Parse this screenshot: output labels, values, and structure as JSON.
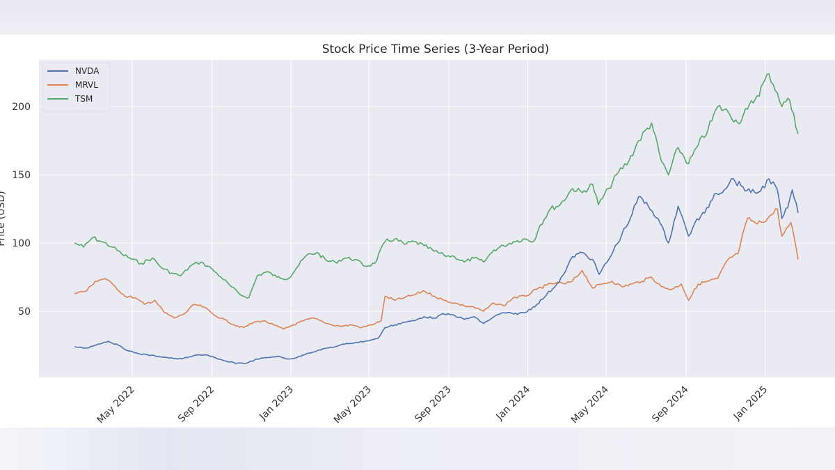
{
  "chart_data": {
    "type": "line",
    "title": "Stock Price Time Series (3-Year Period)",
    "xlabel": "",
    "ylabel": "Price (USD)",
    "x_range": [
      "2022-02-01",
      "2025-02-21"
    ],
    "ylim": [
      0,
      232
    ],
    "y_ticks": [
      50,
      100,
      150,
      200
    ],
    "x_ticks": [
      {
        "date": "2022-05-01",
        "label": "May 2022"
      },
      {
        "date": "2022-09-01",
        "label": "Sep 2022"
      },
      {
        "date": "2023-01-01",
        "label": "Jan 2023"
      },
      {
        "date": "2023-05-01",
        "label": "May 2023"
      },
      {
        "date": "2023-09-01",
        "label": "Sep 2023"
      },
      {
        "date": "2024-01-01",
        "label": "Jan 2024"
      },
      {
        "date": "2024-05-01",
        "label": "May 2024"
      },
      {
        "date": "2024-09-01",
        "label": "Sep 2024"
      },
      {
        "date": "2025-01-01",
        "label": "Jan 2025"
      }
    ],
    "grid": true,
    "legend_position": "top-left",
    "series": [
      {
        "name": "NVDA",
        "color": "#4c72b0",
        "points": [
          [
            "2022-02-01",
            24
          ],
          [
            "2022-02-20",
            23
          ],
          [
            "2022-03-10",
            26
          ],
          [
            "2022-03-25",
            28
          ],
          [
            "2022-04-10",
            25
          ],
          [
            "2022-04-25",
            21
          ],
          [
            "2022-05-10",
            19
          ],
          [
            "2022-05-25",
            18
          ],
          [
            "2022-06-10",
            17
          ],
          [
            "2022-06-25",
            16
          ],
          [
            "2022-07-10",
            15
          ],
          [
            "2022-07-25",
            16
          ],
          [
            "2022-08-10",
            18
          ],
          [
            "2022-08-25",
            18
          ],
          [
            "2022-09-10",
            15
          ],
          [
            "2022-09-25",
            13
          ],
          [
            "2022-10-10",
            12
          ],
          [
            "2022-10-25",
            12
          ],
          [
            "2022-11-10",
            15
          ],
          [
            "2022-11-25",
            16
          ],
          [
            "2022-12-10",
            17
          ],
          [
            "2022-12-28",
            15
          ],
          [
            "2023-01-10",
            16
          ],
          [
            "2023-01-25",
            19
          ],
          [
            "2023-02-10",
            21
          ],
          [
            "2023-02-25",
            23
          ],
          [
            "2023-03-10",
            24
          ],
          [
            "2023-03-25",
            26
          ],
          [
            "2023-04-10",
            27
          ],
          [
            "2023-04-25",
            28
          ],
          [
            "2023-05-15",
            30
          ],
          [
            "2023-05-26",
            38
          ],
          [
            "2023-06-10",
            40
          ],
          [
            "2023-06-25",
            42
          ],
          [
            "2023-07-10",
            43
          ],
          [
            "2023-07-25",
            46
          ],
          [
            "2023-08-10",
            45
          ],
          [
            "2023-08-25",
            48
          ],
          [
            "2023-09-10",
            47
          ],
          [
            "2023-09-25",
            44
          ],
          [
            "2023-10-10",
            46
          ],
          [
            "2023-10-25",
            41
          ],
          [
            "2023-11-10",
            46
          ],
          [
            "2023-11-25",
            49
          ],
          [
            "2023-12-10",
            48
          ],
          [
            "2023-12-28",
            49
          ],
          [
            "2024-01-15",
            55
          ],
          [
            "2024-01-30",
            62
          ],
          [
            "2024-02-15",
            70
          ],
          [
            "2024-02-28",
            79
          ],
          [
            "2024-03-10",
            90
          ],
          [
            "2024-03-25",
            93
          ],
          [
            "2024-04-10",
            88
          ],
          [
            "2024-04-20",
            77
          ],
          [
            "2024-05-05",
            88
          ],
          [
            "2024-05-25",
            106
          ],
          [
            "2024-06-10",
            121
          ],
          [
            "2024-06-20",
            134
          ],
          [
            "2024-07-05",
            127
          ],
          [
            "2024-07-20",
            118
          ],
          [
            "2024-08-05",
            100
          ],
          [
            "2024-08-20",
            127
          ],
          [
            "2024-09-05",
            105
          ],
          [
            "2024-09-15",
            115
          ],
          [
            "2024-09-30",
            122
          ],
          [
            "2024-10-15",
            136
          ],
          [
            "2024-10-30",
            139
          ],
          [
            "2024-11-10",
            147
          ],
          [
            "2024-11-25",
            142
          ],
          [
            "2024-12-10",
            137
          ],
          [
            "2024-12-25",
            138
          ],
          [
            "2025-01-07",
            147
          ],
          [
            "2025-01-20",
            139
          ],
          [
            "2025-01-27",
            118
          ],
          [
            "2025-02-05",
            126
          ],
          [
            "2025-02-12",
            139
          ],
          [
            "2025-02-21",
            122
          ]
        ]
      },
      {
        "name": "MRVL",
        "color": "#dd8452",
        "points": [
          [
            "2022-02-01",
            63
          ],
          [
            "2022-02-20",
            65
          ],
          [
            "2022-03-05",
            72
          ],
          [
            "2022-03-20",
            74
          ],
          [
            "2022-04-05",
            68
          ],
          [
            "2022-04-20",
            61
          ],
          [
            "2022-05-05",
            60
          ],
          [
            "2022-05-20",
            55
          ],
          [
            "2022-06-05",
            58
          ],
          [
            "2022-06-20",
            49
          ],
          [
            "2022-07-05",
            45
          ],
          [
            "2022-07-20",
            48
          ],
          [
            "2022-08-05",
            55
          ],
          [
            "2022-08-20",
            53
          ],
          [
            "2022-09-05",
            47
          ],
          [
            "2022-09-20",
            44
          ],
          [
            "2022-10-05",
            40
          ],
          [
            "2022-10-20",
            38
          ],
          [
            "2022-11-05",
            42
          ],
          [
            "2022-11-20",
            43
          ],
          [
            "2022-12-05",
            40
          ],
          [
            "2022-12-20",
            37
          ],
          [
            "2023-01-05",
            40
          ],
          [
            "2023-01-20",
            43
          ],
          [
            "2023-02-05",
            45
          ],
          [
            "2023-02-20",
            42
          ],
          [
            "2023-03-05",
            40
          ],
          [
            "2023-03-20",
            39
          ],
          [
            "2023-04-05",
            40
          ],
          [
            "2023-04-20",
            38
          ],
          [
            "2023-05-05",
            40
          ],
          [
            "2023-05-20",
            43
          ],
          [
            "2023-05-26",
            61
          ],
          [
            "2023-06-10",
            58
          ],
          [
            "2023-06-25",
            60
          ],
          [
            "2023-07-10",
            62
          ],
          [
            "2023-07-25",
            65
          ],
          [
            "2023-08-10",
            61
          ],
          [
            "2023-08-25",
            58
          ],
          [
            "2023-09-10",
            56
          ],
          [
            "2023-09-25",
            54
          ],
          [
            "2023-10-10",
            53
          ],
          [
            "2023-10-25",
            50
          ],
          [
            "2023-11-10",
            56
          ],
          [
            "2023-11-25",
            54
          ],
          [
            "2023-12-10",
            60
          ],
          [
            "2023-12-28",
            61
          ],
          [
            "2024-01-15",
            66
          ],
          [
            "2024-01-30",
            69
          ],
          [
            "2024-02-15",
            71
          ],
          [
            "2024-02-28",
            70
          ],
          [
            "2024-03-10",
            72
          ],
          [
            "2024-03-25",
            80
          ],
          [
            "2024-04-10",
            67
          ],
          [
            "2024-04-25",
            70
          ],
          [
            "2024-05-10",
            72
          ],
          [
            "2024-05-25",
            68
          ],
          [
            "2024-06-10",
            70
          ],
          [
            "2024-06-25",
            72
          ],
          [
            "2024-07-10",
            75
          ],
          [
            "2024-07-25",
            68
          ],
          [
            "2024-08-10",
            66
          ],
          [
            "2024-08-25",
            70
          ],
          [
            "2024-09-05",
            58
          ],
          [
            "2024-09-20",
            70
          ],
          [
            "2024-10-05",
            72
          ],
          [
            "2024-10-20",
            74
          ],
          [
            "2024-11-05",
            88
          ],
          [
            "2024-11-20",
            92
          ],
          [
            "2024-12-05",
            118
          ],
          [
            "2024-12-20",
            114
          ],
          [
            "2025-01-05",
            118
          ],
          [
            "2025-01-20",
            125
          ],
          [
            "2025-01-27",
            105
          ],
          [
            "2025-02-10",
            115
          ],
          [
            "2025-02-21",
            88
          ]
        ]
      },
      {
        "name": "TSM",
        "color": "#55a868",
        "points": [
          [
            "2022-02-01",
            100
          ],
          [
            "2022-02-15",
            97
          ],
          [
            "2022-03-01",
            104
          ],
          [
            "2022-03-15",
            101
          ],
          [
            "2022-04-01",
            97
          ],
          [
            "2022-04-15",
            92
          ],
          [
            "2022-05-01",
            88
          ],
          [
            "2022-05-15",
            85
          ],
          [
            "2022-06-01",
            89
          ],
          [
            "2022-06-15",
            82
          ],
          [
            "2022-07-01",
            78
          ],
          [
            "2022-07-15",
            76
          ],
          [
            "2022-08-01",
            84
          ],
          [
            "2022-08-15",
            86
          ],
          [
            "2022-09-01",
            81
          ],
          [
            "2022-09-15",
            75
          ],
          [
            "2022-10-01",
            68
          ],
          [
            "2022-10-15",
            62
          ],
          [
            "2022-10-28",
            60
          ],
          [
            "2022-11-10",
            76
          ],
          [
            "2022-11-25",
            79
          ],
          [
            "2022-12-10",
            75
          ],
          [
            "2022-12-28",
            74
          ],
          [
            "2023-01-10",
            82
          ],
          [
            "2023-01-25",
            91
          ],
          [
            "2023-02-10",
            93
          ],
          [
            "2023-02-25",
            87
          ],
          [
            "2023-03-10",
            86
          ],
          [
            "2023-03-25",
            89
          ],
          [
            "2023-04-10",
            88
          ],
          [
            "2023-04-25",
            83
          ],
          [
            "2023-05-10",
            85
          ],
          [
            "2023-05-26",
            101
          ],
          [
            "2023-06-10",
            103
          ],
          [
            "2023-06-25",
            99
          ],
          [
            "2023-07-10",
            101
          ],
          [
            "2023-07-25",
            98
          ],
          [
            "2023-08-10",
            94
          ],
          [
            "2023-08-25",
            91
          ],
          [
            "2023-09-10",
            90
          ],
          [
            "2023-09-25",
            86
          ],
          [
            "2023-10-10",
            89
          ],
          [
            "2023-10-25",
            86
          ],
          [
            "2023-11-10",
            95
          ],
          [
            "2023-11-25",
            98
          ],
          [
            "2023-12-10",
            101
          ],
          [
            "2023-12-28",
            103
          ],
          [
            "2024-01-10",
            101
          ],
          [
            "2024-01-20",
            113
          ],
          [
            "2024-02-05",
            125
          ],
          [
            "2024-02-20",
            128
          ],
          [
            "2024-03-10",
            140
          ],
          [
            "2024-03-25",
            137
          ],
          [
            "2024-04-10",
            143
          ],
          [
            "2024-04-19",
            128
          ],
          [
            "2024-05-05",
            140
          ],
          [
            "2024-05-20",
            152
          ],
          [
            "2024-06-05",
            160
          ],
          [
            "2024-06-20",
            175
          ],
          [
            "2024-07-10",
            188
          ],
          [
            "2024-07-25",
            160
          ],
          [
            "2024-08-05",
            150
          ],
          [
            "2024-08-20",
            170
          ],
          [
            "2024-09-05",
            158
          ],
          [
            "2024-09-20",
            172
          ],
          [
            "2024-10-05",
            183
          ],
          [
            "2024-10-20",
            200
          ],
          [
            "2024-11-05",
            196
          ],
          [
            "2024-11-20",
            188
          ],
          [
            "2024-12-05",
            198
          ],
          [
            "2024-12-20",
            208
          ],
          [
            "2025-01-07",
            224
          ],
          [
            "2025-01-20",
            210
          ],
          [
            "2025-01-27",
            200
          ],
          [
            "2025-02-05",
            206
          ],
          [
            "2025-02-14",
            195
          ],
          [
            "2025-02-21",
            180
          ]
        ]
      }
    ]
  }
}
